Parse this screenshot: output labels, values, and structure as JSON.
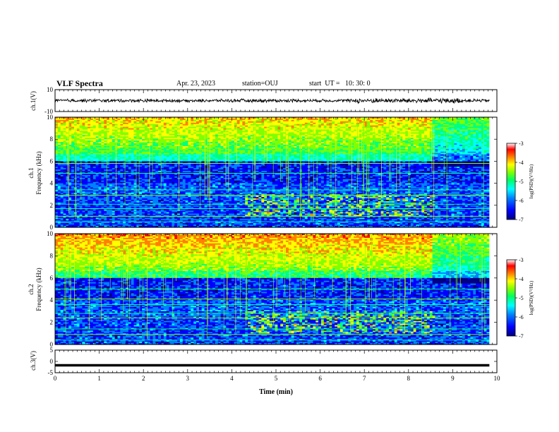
{
  "header": {
    "title": "VLF Spectra",
    "date": "Apr. 23, 2023",
    "station": "station=OUJ",
    "start": "start  UT =   10: 30: 0"
  },
  "colorbar_colors": [
    "#000080",
    "#0000ff",
    "#0080ff",
    "#00ffff",
    "#00ff80",
    "#80ff00",
    "#ffff00",
    "#ff8000",
    "#ff0000",
    "#ffffff"
  ],
  "chart_data": [
    {
      "type": "line",
      "ylabel": "ch.1(V)",
      "ylim": [
        -10,
        10
      ],
      "y_ticks": [
        "10",
        "-10"
      ],
      "xlim": [
        0,
        10
      ],
      "x_ticks": [
        "0",
        "1",
        "2",
        "3",
        "4",
        "5",
        "6",
        "7",
        "8",
        "9",
        "10"
      ],
      "series_description_level": 0,
      "amplitude": 1.2
    },
    {
      "type": "heatmap",
      "ylabel": "ch.1\nFrequency  (kHz)",
      "ylim": [
        0,
        10
      ],
      "y_ticks": [
        "0",
        "2",
        "4",
        "6",
        "8",
        "10"
      ],
      "colorbar_label": "log(PSD)(V²/Hz)",
      "colorbar_range": [
        -7,
        -3
      ],
      "colorbar_ticks": [
        "-3",
        "-4",
        "-5",
        "-6",
        "-7"
      ]
    },
    {
      "type": "heatmap",
      "ylabel": "ch.2\nFrequency  (kHz)",
      "ylim": [
        0,
        10
      ],
      "y_ticks": [
        "0",
        "2",
        "4",
        "6",
        "8",
        "10"
      ],
      "colorbar_label": "log(PSD)(V²/Hz)",
      "colorbar_range": [
        -7,
        -3
      ],
      "colorbar_ticks": [
        "-3",
        "-4",
        "-5",
        "-6",
        "-7"
      ]
    },
    {
      "type": "line",
      "ylabel": "ch.3(V)",
      "ylim": [
        -5,
        5
      ],
      "y_ticks": [
        "5",
        "0",
        "-5"
      ],
      "value": -1.7,
      "xlim": [
        0,
        10
      ],
      "x_ticks": [
        "0",
        "1",
        "2",
        "3",
        "4",
        "5",
        "6",
        "7",
        "8",
        "9",
        "10"
      ],
      "xlabel": "Time  (min)"
    }
  ]
}
